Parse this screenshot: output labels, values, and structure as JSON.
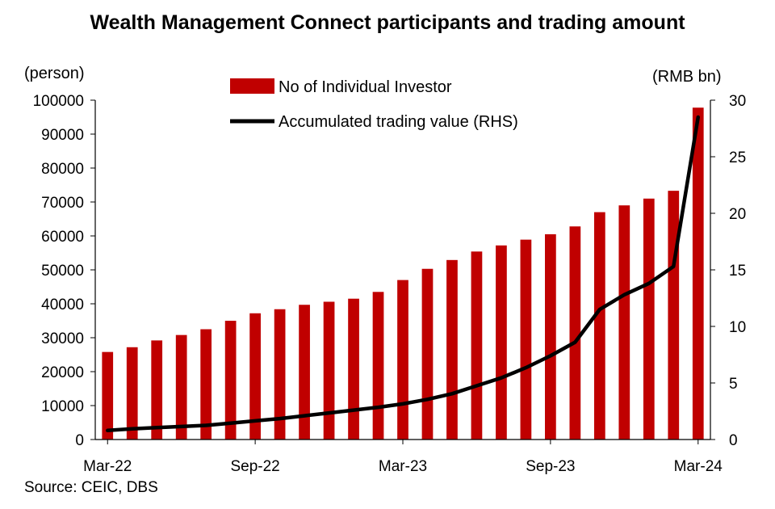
{
  "chart_data": {
    "type": "bar",
    "title": "Wealth Management Connect participants and trading amount",
    "source": "Source: CEIC, DBS",
    "ylabel_left": "(person)",
    "ylabel_right": "(RMB bn)",
    "categories": [
      "Mar-22",
      "Apr-22",
      "May-22",
      "Jun-22",
      "Jul-22",
      "Aug-22",
      "Sep-22",
      "Oct-22",
      "Nov-22",
      "Dec-22",
      "Jan-23",
      "Feb-23",
      "Mar-23",
      "Apr-23",
      "May-23",
      "Jun-23",
      "Jul-23",
      "Aug-23",
      "Sep-23",
      "Oct-23",
      "Nov-23",
      "Dec-23",
      "Jan-24",
      "Feb-24",
      "Mar-24"
    ],
    "x_tick_labels": [
      "Mar-22",
      "Sep-22",
      "Mar-23",
      "Sep-23",
      "Mar-24"
    ],
    "x_tick_indices": [
      0,
      6,
      12,
      18,
      24
    ],
    "yleft_lim": [
      0,
      100000
    ],
    "yleft_ticks": [
      0,
      10000,
      20000,
      30000,
      40000,
      50000,
      60000,
      70000,
      80000,
      90000,
      100000
    ],
    "yright_lim": [
      0,
      30
    ],
    "yright_ticks": [
      0,
      5,
      10,
      15,
      20,
      25,
      30
    ],
    "legend": "top-center",
    "series": [
      {
        "name": "No of Individual Investor",
        "type": "bar",
        "axis": "left",
        "color": "#c00000",
        "values": [
          25800,
          27200,
          29200,
          30800,
          32500,
          35000,
          37200,
          38400,
          39700,
          40600,
          41500,
          43500,
          47000,
          50300,
          52900,
          55400,
          57200,
          58900,
          60500,
          62800,
          67000,
          69000,
          71000,
          73300,
          97800
        ]
      },
      {
        "name": "Accumulated trading value (RHS)",
        "type": "line",
        "axis": "right",
        "color": "#000000",
        "values": [
          0.8,
          0.95,
          1.05,
          1.15,
          1.25,
          1.45,
          1.65,
          1.85,
          2.1,
          2.35,
          2.6,
          2.85,
          3.15,
          3.55,
          4.05,
          4.75,
          5.45,
          6.35,
          7.4,
          8.6,
          11.5,
          12.8,
          13.8,
          15.3,
          28.5
        ]
      }
    ]
  }
}
